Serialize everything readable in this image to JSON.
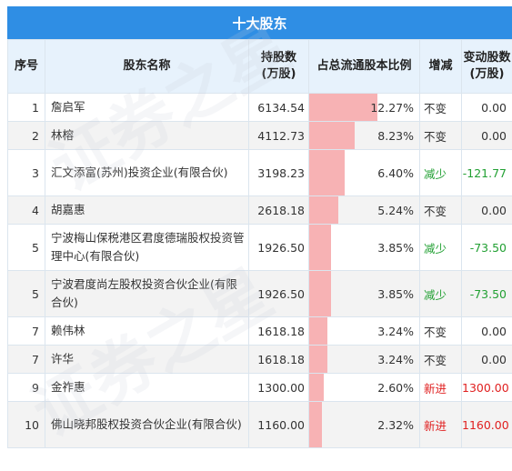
{
  "title": "十大股东",
  "headers": {
    "idx": "序号",
    "name": "股东名称",
    "shares_l1": "持股数",
    "shares_l2": "(万股)",
    "ratio": "占总流通股本比例",
    "change": "增减",
    "delta_l1": "变动股数",
    "delta_l2": "(万股)"
  },
  "colors": {
    "header_bg": "#2f8ee4",
    "bar": "#f7b2b4",
    "increase": "#e02020",
    "decrease": "#22a033",
    "neutral": "#333333"
  },
  "rows": [
    {
      "idx": "1",
      "name": "詹启军",
      "shares": "6134.54",
      "ratio_text": "12.27%",
      "ratio": 12.27,
      "change": "不变",
      "delta": "0.00",
      "kind": "same"
    },
    {
      "idx": "2",
      "name": "林榕",
      "shares": "4112.73",
      "ratio_text": "8.23%",
      "ratio": 8.23,
      "change": "不变",
      "delta": "0.00",
      "kind": "same"
    },
    {
      "idx": "3",
      "name": "汇文添富(苏州)投资企业(有限合伙)",
      "shares": "3198.23",
      "ratio_text": "6.40%",
      "ratio": 6.4,
      "change": "减少",
      "delta": "-121.77",
      "kind": "down"
    },
    {
      "idx": "4",
      "name": "胡嘉惠",
      "shares": "2618.18",
      "ratio_text": "5.24%",
      "ratio": 5.24,
      "change": "不变",
      "delta": "0.00",
      "kind": "same"
    },
    {
      "idx": "5",
      "name": "宁波梅山保税港区君度德瑞股权投资管理中心(有限合伙)",
      "shares": "1926.50",
      "ratio_text": "3.85%",
      "ratio": 3.85,
      "change": "减少",
      "delta": "-73.50",
      "kind": "down"
    },
    {
      "idx": "5",
      "name": "宁波君度尚左股权投资合伙企业(有限合伙)",
      "shares": "1926.50",
      "ratio_text": "3.85%",
      "ratio": 3.85,
      "change": "减少",
      "delta": "-73.50",
      "kind": "down"
    },
    {
      "idx": "7",
      "name": "赖伟林",
      "shares": "1618.18",
      "ratio_text": "3.24%",
      "ratio": 3.24,
      "change": "不变",
      "delta": "0.00",
      "kind": "same"
    },
    {
      "idx": "7",
      "name": "许华",
      "shares": "1618.18",
      "ratio_text": "3.24%",
      "ratio": 3.24,
      "change": "不变",
      "delta": "0.00",
      "kind": "same"
    },
    {
      "idx": "9",
      "name": "金祚惠",
      "shares": "1300.00",
      "ratio_text": "2.60%",
      "ratio": 2.6,
      "change": "新进",
      "delta": "1300.00",
      "kind": "new"
    },
    {
      "idx": "10",
      "name": "佛山晓邦股权投资合伙企业(有限合伙)",
      "shares": "1160.00",
      "ratio_text": "2.32%",
      "ratio": 2.32,
      "change": "新进",
      "delta": "1160.00",
      "kind": "new"
    }
  ]
}
